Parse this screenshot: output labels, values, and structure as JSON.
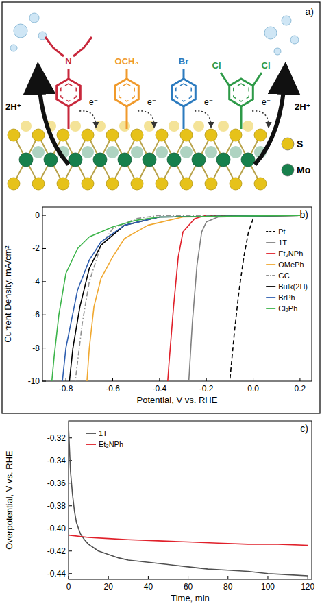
{
  "diagram": {
    "label": "a)",
    "protons": [
      "2H⁺",
      "2H⁺"
    ],
    "electrons": [
      "e⁻",
      "e⁻",
      "e⁻",
      "e⁻"
    ],
    "molecules": [
      {
        "color": "#c8283c",
        "labels": [
          "N"
        ]
      },
      {
        "color": "#f09a2c",
        "labels": [
          "OCH₃"
        ]
      },
      {
        "color": "#2c7bbf",
        "labels": [
          "Br"
        ]
      },
      {
        "color": "#2e9a48",
        "labels": [
          "Cl",
          "Cl"
        ]
      }
    ],
    "atoms": [
      {
        "label": "S",
        "color": "#e6c21a"
      },
      {
        "label": "Mo",
        "color": "#17804c"
      }
    ]
  },
  "chart_data": [
    {
      "type": "line",
      "annotations": [
        "b)"
      ],
      "x_label": "Potential, V vs. RHE",
      "y_label": "Current Density, mA/cm²",
      "xlim": [
        -0.9,
        0.25
      ],
      "ylim": [
        -10,
        0.5
      ],
      "xticks": [
        -0.8,
        -0.6,
        -0.4,
        -0.2,
        {
          "value": 0,
          "label": "0.0"
        },
        0.2
      ],
      "yticks": [
        -10,
        -8,
        -6,
        -4,
        -2,
        0
      ],
      "grid": false,
      "legend": "right",
      "series": [
        {
          "name": "Pt",
          "color": "#000000",
          "line_style": "dashed",
          "x": [
            0.2,
            0.02,
            0,
            -0.02,
            -0.04,
            -0.06,
            -0.08,
            -0.1
          ],
          "values": [
            0,
            0,
            -0.2,
            -1,
            -2.5,
            -4.5,
            -7,
            -10
          ]
        },
        {
          "name": "1T",
          "color": "#808080",
          "line_style": "solid",
          "x": [
            0.2,
            -0.15,
            -0.2,
            -0.22,
            -0.24,
            -0.26,
            -0.275
          ],
          "values": [
            0,
            -0.1,
            -0.4,
            -1,
            -3,
            -6.5,
            -10
          ]
        },
        {
          "name": "Et₂NPh",
          "color": "#e0202a",
          "line_style": "solid",
          "x": [
            0.2,
            -0.2,
            -0.25,
            -0.3,
            -0.32,
            -0.34,
            -0.36,
            -0.365
          ],
          "values": [
            0,
            0,
            -0.2,
            -1,
            -2.5,
            -5.5,
            -9,
            -10
          ]
        },
        {
          "name": "OMePh",
          "color": "#f0a830",
          "line_style": "solid",
          "x": [
            0.2,
            -0.3,
            -0.45,
            -0.55,
            -0.6,
            -0.65,
            -0.68,
            -0.7,
            -0.71
          ],
          "values": [
            0,
            -0.1,
            -0.6,
            -1.4,
            -2.5,
            -3.8,
            -5.5,
            -8,
            -10
          ]
        },
        {
          "name": "GC",
          "color": "#909090",
          "line_style": "dashdot",
          "x": [
            0.2,
            -0.4,
            -0.5,
            -0.6,
            -0.65,
            -0.7,
            -0.73,
            -0.76
          ],
          "values": [
            0,
            0,
            -0.2,
            -0.8,
            -1.8,
            -4,
            -6.5,
            -10
          ]
        },
        {
          "name": "Bulk(2H)",
          "color": "#000000",
          "line_style": "solid",
          "x": [
            0.2,
            -0.4,
            -0.55,
            -0.65,
            -0.7,
            -0.74,
            -0.77,
            -0.785
          ],
          "values": [
            0,
            -0.1,
            -0.6,
            -1.8,
            -3.2,
            -5.5,
            -8,
            -10
          ]
        },
        {
          "name": "BrPh",
          "color": "#2f5fb0",
          "line_style": "solid",
          "x": [
            0.2,
            -0.4,
            -0.55,
            -0.65,
            -0.7,
            -0.75,
            -0.8,
            -0.815
          ],
          "values": [
            0,
            -0.1,
            -0.6,
            -1.6,
            -2.7,
            -4.5,
            -8,
            -10
          ]
        },
        {
          "name": "Cl₂Ph",
          "color": "#3cb44a",
          "line_style": "solid",
          "x": [
            0.2,
            -0.4,
            -0.5,
            -0.6,
            -0.7,
            -0.75,
            -0.8,
            -0.83,
            -0.85,
            -0.86
          ],
          "values": [
            0,
            -0.1,
            -0.3,
            -0.7,
            -1.3,
            -2,
            -3.5,
            -6,
            -8.5,
            -10
          ]
        }
      ]
    },
    {
      "type": "line",
      "annotations": [
        "c)"
      ],
      "x_label": "Time, min",
      "y_label": "Overpotential, V vs. RHE",
      "xlim": [
        0,
        122
      ],
      "ylim": [
        -0.445,
        -0.305
      ],
      "xticks": [
        0,
        20,
        40,
        60,
        80,
        100,
        120
      ],
      "yticks": [
        -0.44,
        -0.42,
        {
          "value": -0.4,
          "label": "-0.40"
        },
        -0.38,
        -0.36,
        -0.34,
        -0.32
      ],
      "grid": false,
      "legend": "upper-left",
      "series": [
        {
          "name": "1T",
          "color": "#505050",
          "line_style": "solid",
          "x": [
            0,
            1,
            2,
            3,
            4,
            5,
            6,
            8,
            10,
            15,
            20,
            25,
            30,
            40,
            50,
            60,
            70,
            80,
            90,
            100,
            110,
            120
          ],
          "values": [
            -0.31,
            -0.35,
            -0.37,
            -0.385,
            -0.395,
            -0.4,
            -0.405,
            -0.41,
            -0.414,
            -0.42,
            -0.423,
            -0.426,
            -0.428,
            -0.43,
            -0.432,
            -0.434,
            -0.436,
            -0.437,
            -0.438,
            -0.44,
            -0.441,
            -0.442
          ]
        },
        {
          "name": "Et₂NPh",
          "color": "#e0202a",
          "line_style": "solid",
          "x": [
            0,
            10,
            20,
            30,
            45,
            60,
            75,
            90,
            105,
            120
          ],
          "values": [
            -0.406,
            -0.408,
            -0.409,
            -0.41,
            -0.411,
            -0.412,
            -0.413,
            -0.414,
            -0.414,
            -0.415
          ]
        }
      ]
    }
  ]
}
